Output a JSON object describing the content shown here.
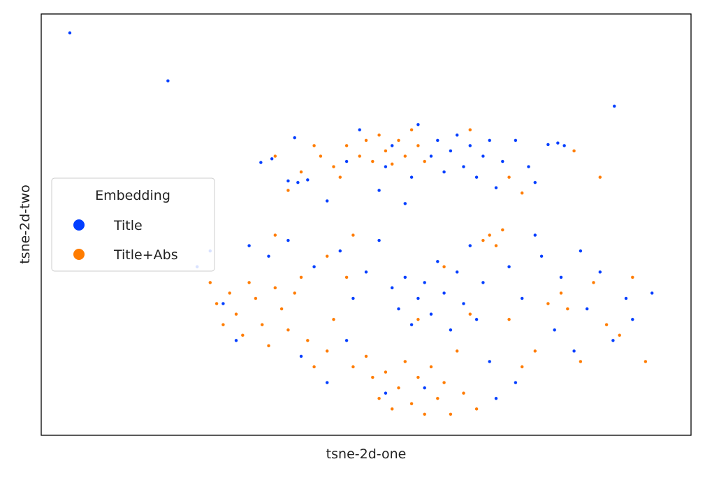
{
  "chart_data": {
    "type": "scatter",
    "xlabel": "tsne-2d-one",
    "ylabel": "tsne-2d-two",
    "xlim": [
      -50,
      50
    ],
    "ylim": [
      -40,
      40
    ],
    "legend": {
      "title": "Embedding",
      "position": "center left"
    },
    "series": [
      {
        "name": "Title",
        "color": "#023eff",
        "x": [
          -45.6,
          -30.5,
          38.2,
          -16.2,
          -14.5,
          -12,
          -10.5,
          -9,
          -11,
          -6,
          -3,
          -1,
          2,
          4,
          6,
          8,
          10,
          11,
          12,
          13,
          14,
          15,
          16,
          17,
          18,
          19,
          20,
          21,
          23,
          25,
          28,
          29.5,
          30.5,
          26,
          7,
          3,
          -26,
          -24,
          -22,
          -20,
          -18,
          -15,
          -12,
          -10,
          -8,
          -6,
          -4,
          -2,
          0,
          2,
          4,
          5,
          6,
          7,
          8,
          9,
          10,
          11,
          12,
          13,
          14,
          15,
          16,
          17,
          18,
          19,
          20,
          22,
          23,
          24,
          26,
          27,
          29,
          30,
          32,
          33,
          34,
          36,
          38,
          40,
          41,
          44,
          3,
          9,
          -3
        ],
        "y": [
          36.4,
          27.3,
          22.5,
          11.8,
          12.5,
          8.3,
          8.0,
          8.5,
          16.5,
          4.5,
          12,
          18,
          6.5,
          15,
          4,
          19,
          13,
          16,
          10,
          14,
          17,
          11,
          15,
          9,
          13,
          16,
          7,
          12,
          16,
          11,
          15.2,
          15.5,
          15,
          8,
          9,
          11,
          -8,
          -5,
          -15,
          -22,
          -4,
          -6,
          -3,
          -25,
          -8,
          -30,
          -5,
          -14,
          -9,
          -3,
          -12,
          -16,
          -10,
          -19,
          -14,
          -11,
          -17,
          -7,
          -13,
          -20,
          -9,
          -15,
          -4,
          -18,
          -11,
          -26,
          -33,
          -8,
          -30,
          -14,
          -2,
          -6,
          -20,
          -10,
          -24,
          -5,
          -16,
          -9,
          -22,
          -14,
          -18,
          -13,
          -32,
          -31,
          -22
        ]
      },
      {
        "name": "Title+Abs",
        "color": "#ff7c00",
        "x": [
          -12,
          -10,
          -7,
          -5,
          -3,
          -1,
          0,
          1,
          2,
          3,
          4,
          5,
          6,
          7,
          8,
          9,
          -4,
          -8,
          16,
          -14,
          22,
          24,
          32,
          36,
          -24,
          -23,
          -22,
          -21,
          -20,
          -19,
          -18,
          -17,
          -16,
          -15,
          -14,
          -13,
          -12,
          -11,
          -10,
          -9,
          -8,
          -6,
          -5,
          -3,
          -2,
          0,
          1,
          2,
          3,
          4,
          5,
          6,
          7,
          8,
          9,
          10,
          11,
          12,
          13,
          14,
          15,
          16,
          17,
          18,
          19,
          20,
          21,
          22,
          24,
          26,
          28,
          30,
          31,
          33,
          35,
          37,
          39,
          41,
          43,
          -2,
          -14,
          -6,
          8,
          12
        ],
        "y": [
          6.5,
          10,
          13,
          11,
          15,
          13,
          16,
          12,
          17,
          14,
          11.5,
          16,
          13,
          18,
          15,
          12,
          9,
          15,
          18,
          13,
          9,
          6,
          14,
          9,
          -11,
          -15,
          -19,
          -13,
          -17,
          -21,
          -11,
          -14,
          -19,
          -23,
          -12,
          -16,
          -20,
          -13,
          -10,
          -22,
          -27,
          -24,
          -18,
          -10,
          -27,
          -25,
          -29,
          -33,
          -28,
          -35,
          -31,
          -26,
          -34,
          -29,
          -36,
          -27,
          -33,
          -30,
          -36,
          -24,
          -32,
          -17,
          -35,
          -3,
          -2,
          -4,
          -1,
          -18,
          -27,
          -24,
          -15,
          -13,
          -16,
          -26,
          -11,
          -19,
          -21,
          -10,
          -26,
          -2,
          -2,
          -6,
          -18,
          -8
        ]
      }
    ]
  }
}
